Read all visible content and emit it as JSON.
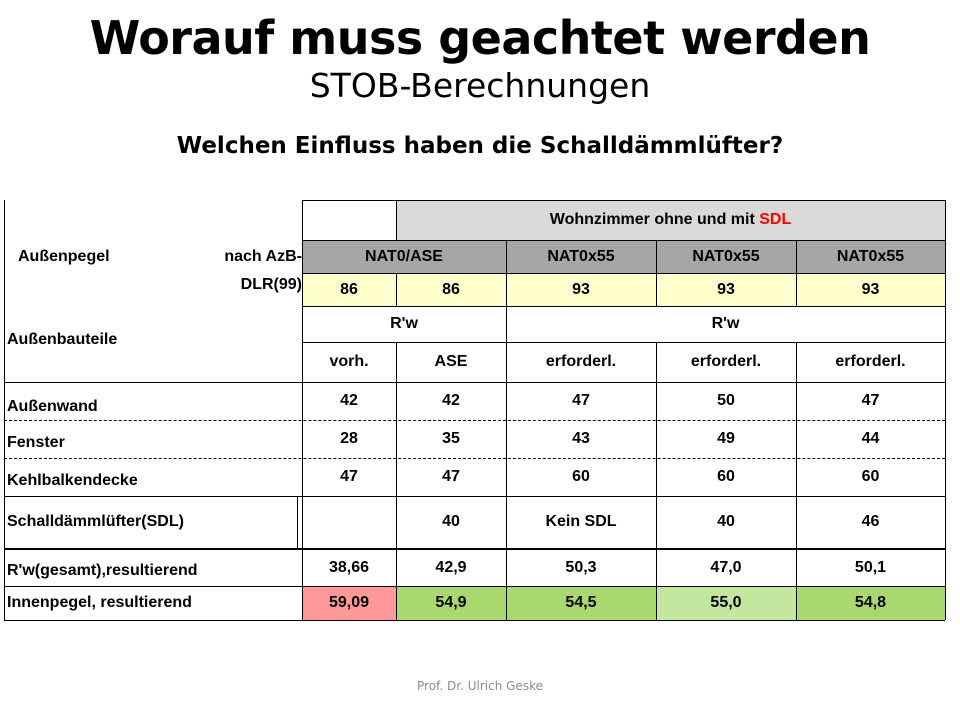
{
  "header": {
    "title": "Worauf muss geachtet werden",
    "subtitle": "STOB-Berechnungen",
    "question": "Welchen Einfluss haben die Schalldämmlüfter?"
  },
  "table": {
    "group_header_prefix": "Wohnzimmer ohne und mit ",
    "group_header_highlight": "SDL",
    "outer_level_label": "Außenpegel",
    "outer_level_source_line1": "nach AzB-",
    "outer_level_source_line2": "DLR(99)",
    "components_label": "Außenbauteile",
    "columns": [
      "NAT0/ASE",
      "NAT0x55",
      "NAT0x55",
      "NAT0x55"
    ],
    "levels": [
      "86",
      "86",
      "93",
      "93",
      "93"
    ],
    "rw_label_1": "R'w",
    "rw_label_2": "R'w",
    "condition": [
      "vorh.",
      "ASE",
      "erforderl.",
      "erforderl.",
      "erforderl."
    ],
    "rows": [
      {
        "label": "Außenwand",
        "values": [
          "42",
          "42",
          "47",
          "50",
          "47"
        ]
      },
      {
        "label": "Fenster",
        "values": [
          "28",
          "35",
          "43",
          "49",
          "44"
        ]
      },
      {
        "label": "Kehlbalkendecke",
        "values": [
          "47",
          "47",
          "60",
          "60",
          "60"
        ]
      },
      {
        "label": "Schalldämmlüfter(SDL)",
        "values": [
          "",
          "40",
          "Kein SDL",
          "40",
          "46"
        ]
      },
      {
        "label": "R'w(gesamt),resultierend",
        "values": [
          "38,66",
          "42,9",
          "50,3",
          "47,0",
          "50,1"
        ]
      },
      {
        "label": "Innenpegel, resultierend",
        "values": [
          "59,09",
          "54,9",
          "54,5",
          "55,0",
          "54,8"
        ]
      }
    ]
  },
  "footer": {
    "author": "Prof. Dr. Ulrich Geske"
  },
  "colors": {
    "header_gray": "#d9d9d9",
    "dark_gray": "#a6a6a6",
    "light_yellow": "#ffffcc",
    "highlight_red": "#ff0000",
    "pink": "#ff9999",
    "green_light": "#c4e7a0",
    "green": "#a9d86e"
  }
}
